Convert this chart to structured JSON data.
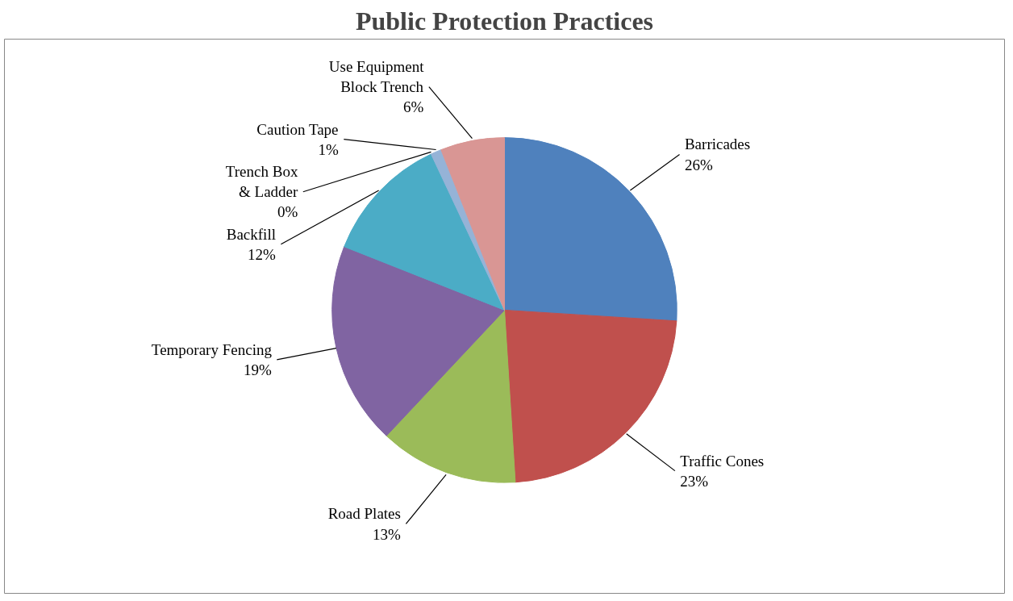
{
  "chart_data": {
    "type": "pie",
    "title": "Public Protection Practices",
    "categories": [
      "Barricades",
      "Traffic Cones",
      "Road Plates",
      "Temporary Fencing",
      "Backfill",
      "Trench Box & Ladder",
      "Caution Tape",
      "Use Equipment Block Trench"
    ],
    "values": [
      26,
      23,
      13,
      19,
      12,
      0,
      1,
      6
    ],
    "colors": [
      "#4f81bd",
      "#c0504d",
      "#9bbb59",
      "#8064a2",
      "#4bacc6",
      "#f79646",
      "#95b3d7",
      "#d99694"
    ],
    "value_labels": [
      "26%",
      "23%",
      "13%",
      "19%",
      "12%",
      "0%",
      "1%",
      "6%"
    ]
  }
}
